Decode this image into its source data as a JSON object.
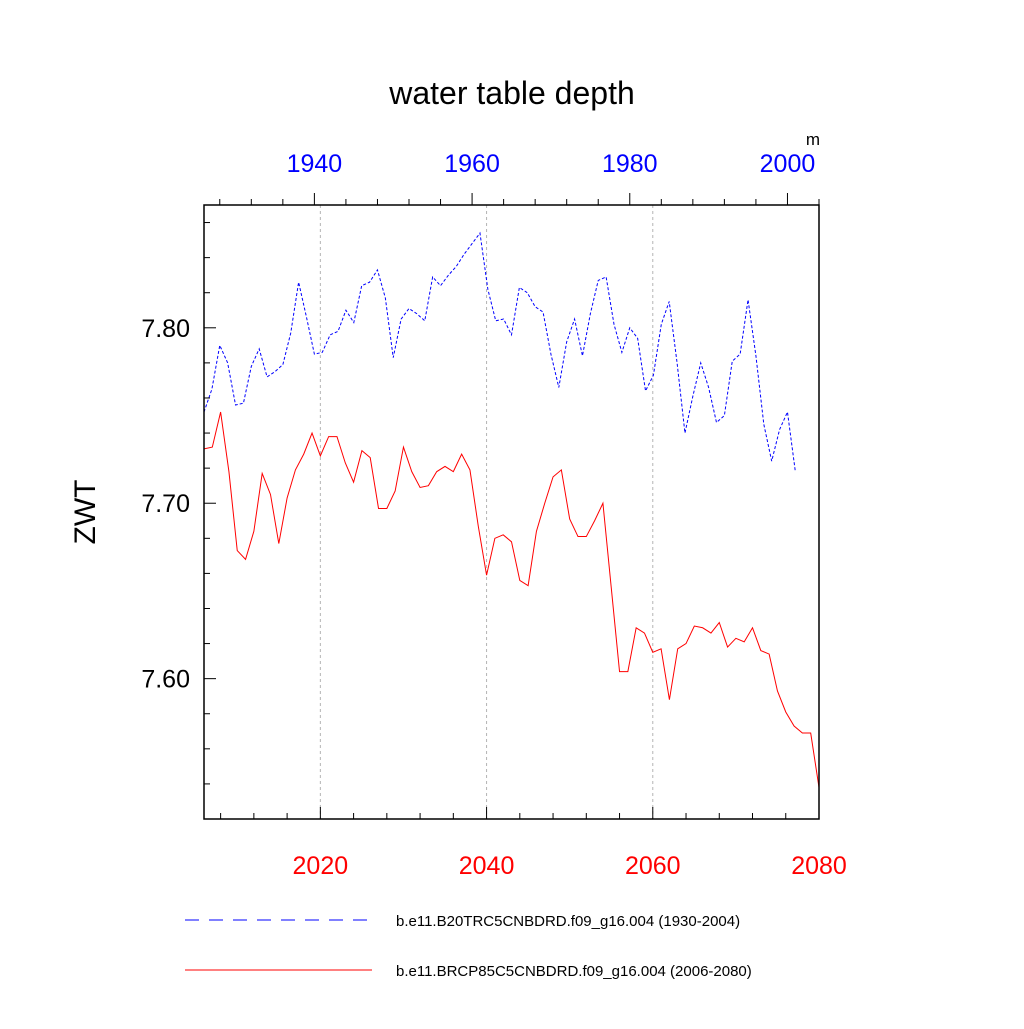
{
  "chart_data": {
    "type": "line",
    "title": "water table depth",
    "units_label": "m",
    "ylabel": "ZWT",
    "xlabel": "",
    "ylim": [
      7.52,
      7.87
    ],
    "yticks": [
      7.6,
      7.7,
      7.8
    ],
    "ytick_labels": [
      "7.60",
      "7.70",
      "7.80"
    ],
    "top_axis": {
      "range": [
        1926,
        2004
      ],
      "ticks": [
        1940,
        1960,
        1980,
        2000
      ],
      "tick_labels": [
        "1940",
        "1960",
        "1980",
        "2000"
      ],
      "color": "#0000ff"
    },
    "bottom_axis": {
      "range": [
        2006,
        2080
      ],
      "ticks": [
        2020,
        2040,
        2060,
        2080
      ],
      "tick_labels": [
        "2020",
        "2040",
        "2060",
        "2080"
      ],
      "color": "#ff0000"
    },
    "series": [
      {
        "name": "b.e11.B20TRC5CNBDRD.f09_g16.004 (1930-2004)",
        "axis": "top",
        "color": "#0000ff",
        "style": "dashed",
        "x_start": 1926,
        "values": [
          7.752,
          7.765,
          7.79,
          7.78,
          7.756,
          7.757,
          7.778,
          7.788,
          7.772,
          7.775,
          7.779,
          7.797,
          7.826,
          7.806,
          7.785,
          7.786,
          7.796,
          7.798,
          7.81,
          7.803,
          7.824,
          7.826,
          7.833,
          7.817,
          7.783,
          7.805,
          7.811,
          7.808,
          7.804,
          7.829,
          7.824,
          7.83,
          7.835,
          7.842,
          7.848,
          7.854,
          7.822,
          7.804,
          7.805,
          7.796,
          7.823,
          7.82,
          7.812,
          7.809,
          7.785,
          7.766,
          7.792,
          7.805,
          7.784,
          7.808,
          7.827,
          7.829,
          7.802,
          7.786,
          7.8,
          7.794,
          7.764,
          7.773,
          7.802,
          7.815,
          7.78,
          7.74,
          7.761,
          7.78,
          7.766,
          7.746,
          7.75,
          7.781,
          7.785,
          7.816,
          7.784,
          7.745,
          7.724,
          7.742,
          7.752,
          7.718
        ]
      },
      {
        "name": "b.e11.BRCP85C5CNBDRD.f09_g16.004 (2006-2080)",
        "axis": "bottom",
        "color": "#ff0000",
        "style": "solid",
        "x_start": 2006,
        "values": [
          7.731,
          7.732,
          7.752,
          7.718,
          7.673,
          7.668,
          7.684,
          7.717,
          7.705,
          7.677,
          7.703,
          7.719,
          7.728,
          7.74,
          7.727,
          7.738,
          7.738,
          7.723,
          7.712,
          7.73,
          7.726,
          7.697,
          7.697,
          7.707,
          7.732,
          7.718,
          7.709,
          7.71,
          7.718,
          7.721,
          7.718,
          7.728,
          7.719,
          7.687,
          7.659,
          7.68,
          7.682,
          7.678,
          7.656,
          7.653,
          7.684,
          7.7,
          7.715,
          7.719,
          7.691,
          7.681,
          7.681,
          7.69,
          7.7,
          7.652,
          7.604,
          7.604,
          7.629,
          7.626,
          7.615,
          7.617,
          7.588,
          7.617,
          7.62,
          7.63,
          7.629,
          7.626,
          7.632,
          7.618,
          7.623,
          7.621,
          7.629,
          7.616,
          7.614,
          7.593,
          7.581,
          7.573,
          7.569,
          7.569,
          7.538
        ]
      }
    ]
  }
}
